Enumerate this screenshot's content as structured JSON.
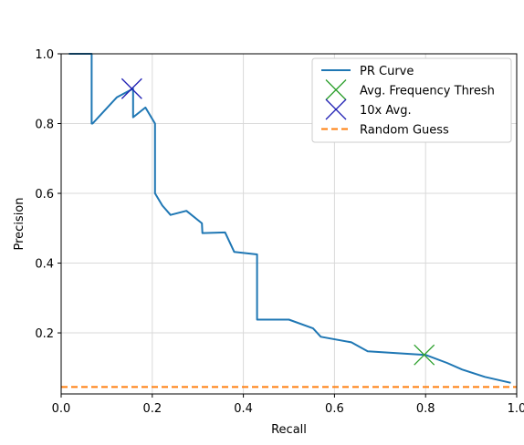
{
  "chart_data": {
    "type": "line",
    "xlabel": "Recall",
    "ylabel": "Precision",
    "xlim": [
      0.0,
      1.0
    ],
    "ylim": [
      0.025,
      1.0
    ],
    "xticks": [
      "0.0",
      "0.2",
      "0.4",
      "0.6",
      "0.8",
      "1.0"
    ],
    "xtick_values": [
      0.0,
      0.2,
      0.4,
      0.6,
      0.8,
      1.0
    ],
    "yticks": [
      "0.2",
      "0.4",
      "0.6",
      "0.8",
      "1.0"
    ],
    "ytick_values": [
      0.2,
      0.4,
      0.6,
      0.8,
      1.0
    ],
    "grid": true,
    "legend_position": "top-right",
    "colors": {
      "pr_curve": "#1f77b4",
      "avg_threshold": "#2ca02c",
      "ten_x_avg": "#1f1fb4",
      "random_guess": "#ff7f0e"
    },
    "series": [
      {
        "name": "PR Curve",
        "kind": "line",
        "x": [
          0.017,
          0.067,
          0.067,
          0.069,
          0.122,
          0.158,
          0.158,
          0.185,
          0.206,
          0.206,
          0.222,
          0.24,
          0.275,
          0.309,
          0.31,
          0.36,
          0.38,
          0.43,
          0.43,
          0.5,
          0.553,
          0.57,
          0.637,
          0.673,
          0.8,
          0.847,
          0.88,
          0.93,
          0.987
        ],
        "y": [
          1.0,
          1.0,
          0.8,
          0.8,
          0.875,
          0.9,
          0.818,
          0.846,
          0.8,
          0.6,
          0.565,
          0.538,
          0.55,
          0.514,
          0.486,
          0.488,
          0.432,
          0.425,
          0.238,
          0.238,
          0.213,
          0.189,
          0.173,
          0.147,
          0.137,
          0.114,
          0.095,
          0.074,
          0.057
        ]
      },
      {
        "name": "Avg. Frequency Thresh",
        "kind": "marker",
        "marker": "x",
        "x": [
          0.797
        ],
        "y": [
          0.137
        ]
      },
      {
        "name": "10x Avg.",
        "kind": "marker",
        "marker": "x",
        "x": [
          0.155
        ],
        "y": [
          0.9
        ]
      },
      {
        "name": "Random Guess",
        "kind": "hline",
        "y": 0.045
      }
    ]
  }
}
